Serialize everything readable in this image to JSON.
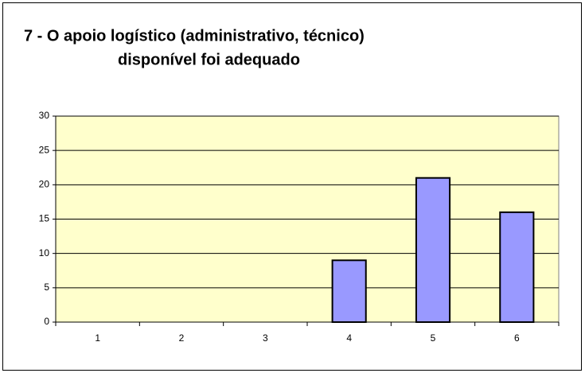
{
  "chart_data": {
    "type": "bar",
    "title": [
      "7 - O apoio logístico (administrativo, técnico)",
      "disponível foi adequado"
    ],
    "categories": [
      "1",
      "2",
      "3",
      "4",
      "5",
      "6"
    ],
    "values": [
      0,
      0,
      0,
      9,
      21,
      16
    ],
    "color": "#9999ff",
    "ylim": [
      0,
      30
    ],
    "yticks": [
      0,
      5,
      10,
      15,
      20,
      25,
      30
    ],
    "grid": true
  }
}
